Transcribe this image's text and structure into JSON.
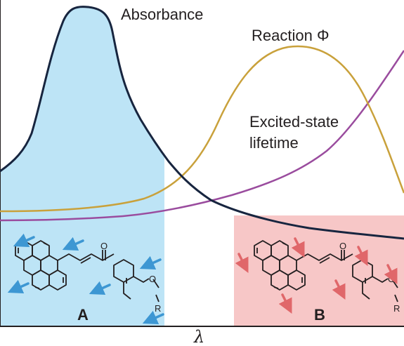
{
  "labels": {
    "absorbance": "Absorbance",
    "reaction": "Reaction Φ",
    "lifetime_line1": "Excited-state",
    "lifetime_line2": "lifetime",
    "axis_x": "λ",
    "region_a": "A",
    "region_b": "B"
  },
  "molecule": {
    "carbonyl_atom": "O",
    "ether_atom": "O",
    "substituent": "R"
  },
  "colors": {
    "absorbance_curve": "#17253f",
    "reaction_curve": "#c9a13b",
    "lifetime_curve": "#9a4c9e",
    "region_a_fill": "#bde4f6",
    "region_b_fill": "#f7c7c7",
    "arrow_a": "#3d97d3",
    "arrow_b": "#e0676a"
  }
}
